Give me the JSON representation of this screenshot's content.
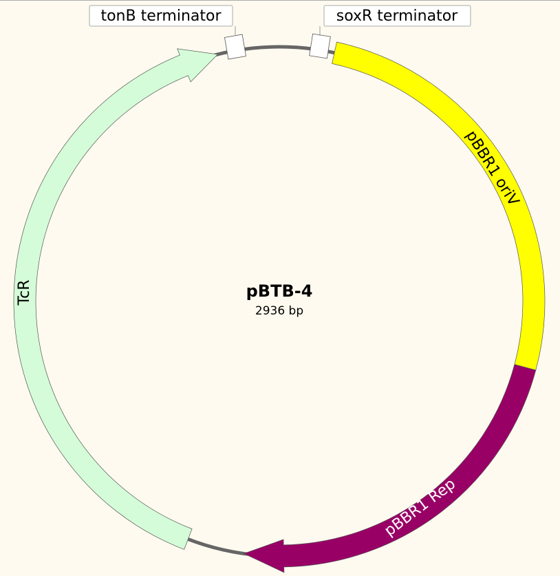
{
  "plasmid": {
    "name": "pBTB-4",
    "size": "2936 bp"
  },
  "features": [
    {
      "label": "tonB terminator"
    },
    {
      "label": "soxR terminator"
    },
    {
      "label": "pBBR1 oriV"
    },
    {
      "label": "pBBR1 Rep"
    },
    {
      "label": "TcR"
    }
  ]
}
